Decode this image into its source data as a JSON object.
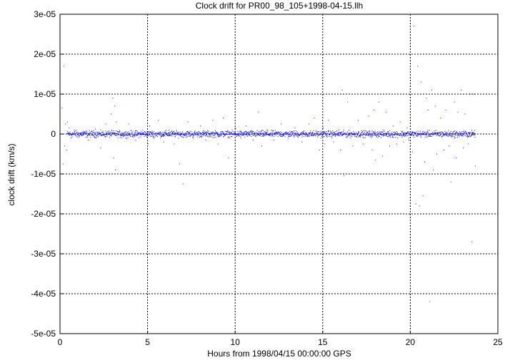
{
  "chart_data": {
    "type": "scatter",
    "title": "Clock drift for PR00_98_105+1998-04-15.llh",
    "xlabel": "Hours from 1998/04/15 00:00:00 GPS",
    "ylabel": "clock drift (km/s)",
    "xlim": [
      0,
      25
    ],
    "ylim": [
      -5e-05,
      3e-05
    ],
    "grid": true,
    "xticks": [
      0,
      5,
      10,
      15,
      20,
      25
    ],
    "xtick_labels": [
      "0",
      "5",
      "10",
      "15",
      "20",
      "25"
    ],
    "yticks": [
      3e-05,
      2e-05,
      1e-05,
      0,
      -1e-05,
      -2e-05,
      -3e-05,
      -4e-05,
      -5e-05
    ],
    "ytick_labels": [
      "3e-05",
      "2e-05",
      "1e-05",
      "0",
      "-1e-05",
      "-2e-05",
      "-3e-05",
      "-4e-05",
      "-5e-05"
    ],
    "point_color": "#0000ff",
    "series": [
      {
        "x": [
          0.1,
          0.15,
          0.2,
          0.25,
          0.3,
          0.35,
          0.4,
          0.5,
          0.6,
          0.8,
          1.0,
          1.3,
          1.6,
          2.0,
          2.3,
          2.6,
          2.9,
          3.0,
          3.05,
          3.1,
          3.15,
          3.2,
          3.5,
          3.9,
          4.3,
          4.7,
          5.0,
          5.1,
          5.3,
          5.6,
          5.9,
          6.2,
          6.5,
          6.8,
          7.0,
          7.3,
          7.6,
          8.0,
          8.3,
          8.7,
          9.0,
          9.3,
          9.6,
          10.0,
          10.3,
          10.6,
          11.0,
          11.3,
          11.5,
          11.8,
          12.2,
          12.6,
          13.0,
          13.4,
          13.8,
          14.2,
          14.5,
          14.8,
          15.0,
          15.1,
          15.3,
          15.6,
          15.9,
          16.0,
          16.1,
          16.2,
          16.4,
          16.7,
          17.0,
          17.3,
          17.6,
          17.8,
          17.9,
          18.0,
          18.2,
          18.4,
          18.6,
          18.8,
          19.0,
          19.2,
          19.4,
          19.6,
          19.8,
          19.9,
          20.0,
          20.1,
          20.2,
          20.3,
          20.4,
          20.5,
          20.6,
          20.7,
          20.8,
          20.9,
          21.0,
          21.1,
          21.2,
          21.3,
          21.4,
          21.5,
          21.7,
          21.9,
          22.0,
          22.2,
          22.3,
          22.5,
          22.6,
          22.7,
          22.9,
          23.0,
          23.1,
          23.3,
          23.4,
          23.5,
          23.6,
          23.7
        ],
        "y": [
          6.5e-06,
          -7.5e-06,
          1.7e-05,
          -3e-06,
          2.5e-06,
          -4e-06,
          3e-06,
          1.5e-06,
          -1e-06,
          1e-06,
          -8e-07,
          7e-07,
          -1.5e-06,
          1.2e-06,
          -3.5e-06,
          2.5e-06,
          5e-06,
          9e-06,
          -6e-06,
          7e-06,
          -9e-06,
          3e-06,
          -1e-06,
          2.5e-06,
          -1.5e-06,
          1e-06,
          -2.5e-06,
          2e-06,
          -8e-07,
          3.5e-06,
          -2e-06,
          1e-06,
          -2.5e-06,
          -7.5e-06,
          -1.25e-05,
          3e-06,
          -1e-06,
          2e-06,
          -1.5e-06,
          3.5e-06,
          -2.5e-06,
          4e-06,
          -6e-06,
          1.5e-06,
          -1e-06,
          2e-06,
          -1.5e-06,
          5.5e-06,
          -3e-06,
          1e-06,
          -1.5e-06,
          2.5e-06,
          -1e-06,
          1.5e-06,
          -2e-06,
          2.5e-06,
          4e-06,
          -4e-06,
          1.5e-06,
          -2.5e-06,
          3.5e-06,
          -2e-06,
          1e-06,
          -4e-06,
          1.1e-05,
          -1.05e-05,
          8e-06,
          -3e-06,
          3.5e-06,
          -2.5e-06,
          4.5e-06,
          -4e-06,
          6e-06,
          -6.5e-06,
          8e-06,
          -5.5e-06,
          5.5e-06,
          -3e-06,
          2e-06,
          -2.5e-06,
          3e-06,
          -2e-06,
          1.5e-06,
          -1.5e-06,
          1.2e-05,
          -4.5e-06,
          2.7e-05,
          -1.75e-05,
          1.7e-05,
          -1.8e-05,
          1.3e-05,
          -1.55e-05,
          -7e-06,
          9e-06,
          6e-06,
          -4.2e-05,
          1.1e-05,
          -9e-06,
          7e-06,
          -5e-06,
          4e-06,
          -4e-06,
          6e-06,
          -3e-06,
          -1.2e-05,
          8e-06,
          -6e-06,
          5.5e-06,
          1.1e-05,
          -3.5e-06,
          5e-06,
          -2.5e-06,
          1e-05,
          -2.7e-05,
          1e-05,
          -8e-06
        ],
        "baseline_noise": 4e-07
      }
    ]
  }
}
